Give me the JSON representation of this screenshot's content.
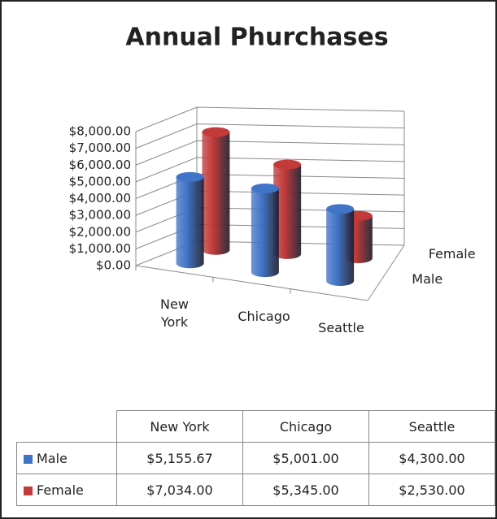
{
  "chart_data": {
    "type": "bar3d",
    "title": "Annual Phurchases",
    "categories": [
      "New York",
      "Chicago",
      "Seattle"
    ],
    "series": [
      {
        "name": "Male",
        "color": "#4173c6",
        "values": [
          5155.67,
          5001.0,
          4300.0
        ],
        "value_labels": [
          "$5,155.67",
          "$5,001.00",
          "$4,300.00"
        ]
      },
      {
        "name": "Female",
        "color": "#c23a3a",
        "values": [
          7034.0,
          5345.0,
          2530.0
        ],
        "value_labels": [
          "$7,034.00",
          "$5,345.00",
          "$2,530.00"
        ]
      }
    ],
    "ylim": [
      0,
      8000
    ],
    "yticks": [
      {
        "value": 0,
        "label": "$0.00"
      },
      {
        "value": 1000,
        "label": "$1,000.00"
      },
      {
        "value": 2000,
        "label": "$2,000.00"
      },
      {
        "value": 3000,
        "label": "$3,000.00"
      },
      {
        "value": 4000,
        "label": "$4,000.00"
      },
      {
        "value": 5000,
        "label": "$5,000.00"
      },
      {
        "value": 6000,
        "label": "$6,000.00"
      },
      {
        "value": 7000,
        "label": "$7,000.00"
      },
      {
        "value": 8000,
        "label": "$8,000.00"
      }
    ],
    "grid": true
  }
}
